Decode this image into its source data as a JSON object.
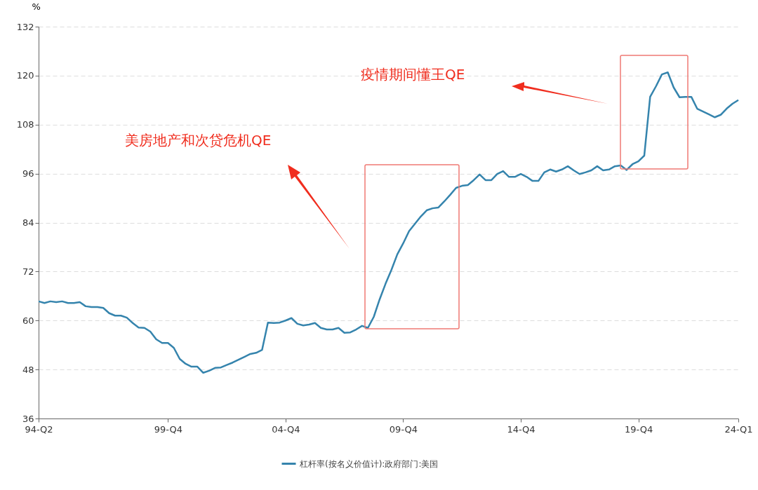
{
  "chart_data": {
    "type": "line",
    "ylabel": "%",
    "categories": [
      "94-Q2",
      null,
      null,
      null,
      null,
      null,
      null,
      null,
      null,
      null,
      null,
      null,
      null,
      null,
      null,
      null,
      null,
      null,
      null,
      null,
      null,
      null,
      "99-Q4",
      null,
      null,
      null,
      null,
      null,
      null,
      null,
      null,
      null,
      null,
      null,
      null,
      null,
      null,
      null,
      null,
      null,
      null,
      null,
      "04-Q4",
      null,
      null,
      null,
      null,
      null,
      null,
      null,
      null,
      null,
      null,
      null,
      null,
      null,
      null,
      null,
      null,
      null,
      null,
      null,
      "09-Q4",
      null,
      null,
      null,
      null,
      null,
      null,
      null,
      null,
      null,
      null,
      null,
      null,
      null,
      null,
      null,
      null,
      null,
      null,
      null,
      "14-Q4",
      null,
      null,
      null,
      null,
      null,
      null,
      null,
      null,
      null,
      null,
      null,
      null,
      null,
      null,
      null,
      null,
      null,
      null,
      null,
      "19-Q4",
      null,
      null,
      null,
      null,
      null,
      null,
      null,
      null,
      null,
      null,
      null,
      null,
      null,
      null,
      null,
      null,
      "24-Q1"
    ],
    "series": [
      {
        "name": "杠杆率(按名义价值计):政府部门:美国",
        "color": "#3584ad",
        "values": [
          64.7,
          64.3,
          64.7,
          64.5,
          64.7,
          64.3,
          64.3,
          64.5,
          63.5,
          63.3,
          63.3,
          63.1,
          61.8,
          61.2,
          61.2,
          60.7,
          59.4,
          58.3,
          58.2,
          57.3,
          55.4,
          54.5,
          54.5,
          53.3,
          50.6,
          49.4,
          48.7,
          48.7,
          47.2,
          47.7,
          48.4,
          48.5,
          49.1,
          49.7,
          50.4,
          51.1,
          51.8,
          52.1,
          52.8,
          59.5,
          59.4,
          59.5,
          60.0,
          60.6,
          59.2,
          58.8,
          59.0,
          59.4,
          58.2,
          57.8,
          57.8,
          58.2,
          57.0,
          57.1,
          57.8,
          58.7,
          58.2,
          60.9,
          65.2,
          69.0,
          72.4,
          76.2,
          78.9,
          81.9,
          83.7,
          85.5,
          87.0,
          87.5,
          87.7,
          89.2,
          90.8,
          92.5,
          93.0,
          93.2,
          94.4,
          95.8,
          94.4,
          94.4,
          95.9,
          96.6,
          95.2,
          95.2,
          95.9,
          95.2,
          94.2,
          94.2,
          96.3,
          97.0,
          96.5,
          97.0,
          97.8,
          96.8,
          95.9,
          96.3,
          96.8,
          97.8,
          96.8,
          97.0,
          97.8,
          98.0,
          96.9,
          98.3,
          99.0,
          100.4,
          114.8,
          117.4,
          120.3,
          120.8,
          117.1,
          114.7,
          114.8,
          114.8,
          111.9,
          111.2,
          110.5,
          109.8,
          110.4,
          111.9,
          113.1,
          114.0
        ]
      }
    ],
    "ylim": [
      36,
      132
    ],
    "yticks": [
      36,
      48,
      60,
      72,
      84,
      96,
      108,
      120,
      132
    ],
    "grid": "y",
    "legend": "bottom",
    "annotations": [
      "疫情期间懂王QE",
      "美房地产和次贷危机QE"
    ]
  }
}
